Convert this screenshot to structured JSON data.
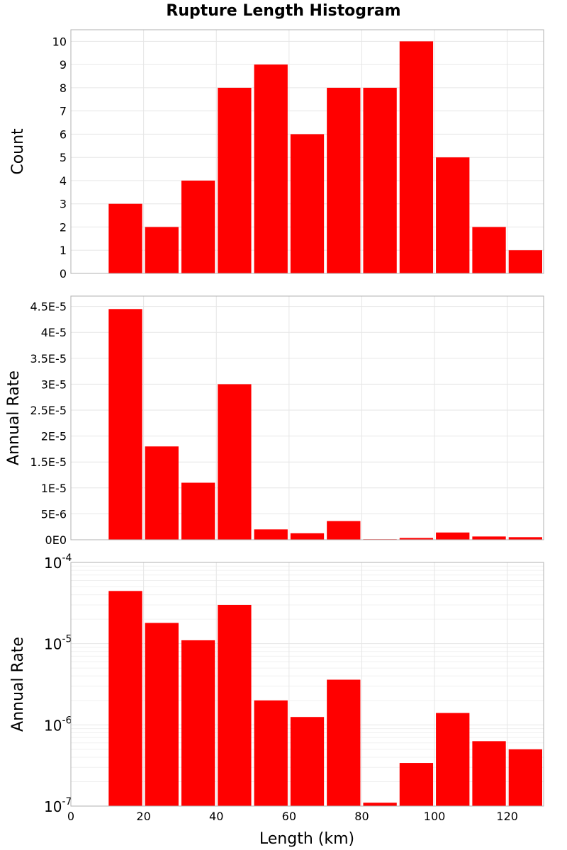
{
  "chart_data": {
    "type": "bar",
    "title": "Rupture Length Histogram",
    "xlabel": "Length (km)",
    "xlim": [
      0,
      130
    ],
    "x_ticks": [
      0,
      20,
      40,
      60,
      80,
      100,
      120
    ],
    "bin_width": 10,
    "bin_centers": [
      15,
      25,
      35,
      45,
      55,
      65,
      75,
      85,
      95,
      105,
      115,
      125
    ],
    "panels": [
      {
        "ylabel": "Count",
        "scale": "linear",
        "ylim": [
          0,
          10.5
        ],
        "y_ticks": [
          0,
          1,
          2,
          3,
          4,
          5,
          6,
          7,
          8,
          9,
          10
        ],
        "y_tick_labels": [
          "0",
          "1",
          "2",
          "3",
          "4",
          "5",
          "6",
          "7",
          "8",
          "9",
          "10"
        ],
        "values": [
          3,
          2,
          4,
          8,
          9,
          6,
          8,
          8,
          10,
          5,
          2,
          1
        ]
      },
      {
        "ylabel": "Annual Rate",
        "scale": "linear",
        "ylim": [
          0,
          4.7e-05
        ],
        "y_ticks": [
          0,
          5e-06,
          1e-05,
          1.5e-05,
          2e-05,
          2.5e-05,
          3e-05,
          3.5e-05,
          4e-05,
          4.5e-05
        ],
        "y_tick_labels": [
          "0E0",
          "5E-6",
          "1E-5",
          "1.5E-5",
          "2E-5",
          "2.5E-5",
          "3E-5",
          "3.5E-5",
          "4E-5",
          "4.5E-5"
        ],
        "values": [
          4.45e-05,
          1.8e-05,
          1.1e-05,
          3e-05,
          2e-06,
          1.25e-06,
          3.6e-06,
          1.1e-07,
          3.4e-07,
          1.4e-06,
          6.3e-07,
          5e-07
        ]
      },
      {
        "ylabel": "Annual Rate",
        "scale": "log",
        "ylim": [
          1e-07,
          0.0001
        ],
        "y_ticks": [
          1e-07,
          1e-06,
          1e-05,
          0.0001
        ],
        "y_tick_labels": [
          {
            "base": "10",
            "exp": "-7"
          },
          {
            "base": "10",
            "exp": "-6"
          },
          {
            "base": "10",
            "exp": "-5"
          },
          {
            "base": "10",
            "exp": "-4"
          }
        ],
        "values": [
          4.45e-05,
          1.8e-05,
          1.1e-05,
          3e-05,
          2e-06,
          1.25e-06,
          3.6e-06,
          1.1e-07,
          3.4e-07,
          1.4e-06,
          6.3e-07,
          5e-07
        ]
      }
    ],
    "bar_color": "#ff0000",
    "grid": true,
    "legend": "none"
  }
}
